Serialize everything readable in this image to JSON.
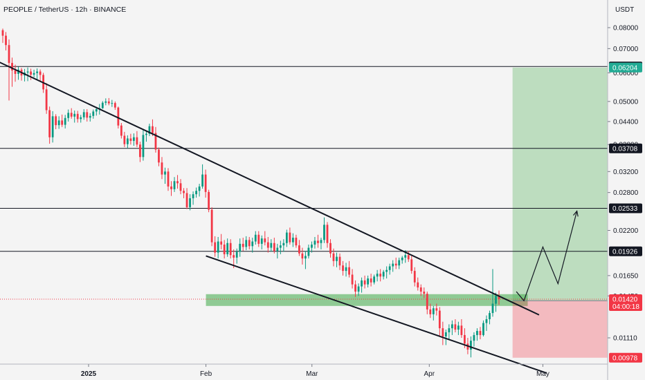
{
  "header": {
    "title": "PEOPLE / TetherUS · 12h · BINANCE",
    "currency": "USDT"
  },
  "chart_data": {
    "type": "candlestick",
    "scale": "log",
    "ylim": [
      0.0088,
      0.088
    ],
    "y_ticks": [
      "0.08000",
      "0.07000",
      "0.06000",
      "0.05000",
      "0.04400",
      "0.03800",
      "0.03200",
      "0.02800",
      "0.02200",
      "0.01650",
      "0.01450",
      "0.01110"
    ],
    "x_ticks": [
      {
        "label": "2025",
        "date": "2025-01-01",
        "bold": true
      },
      {
        "label": "Feb",
        "date": "2025-02-01",
        "bold": false
      },
      {
        "label": "Mar",
        "date": "2025-03-01",
        "bold": false
      },
      {
        "label": "Apr",
        "date": "2025-04-01",
        "bold": false
      },
      {
        "label": "May",
        "date": "2025-05-01",
        "bold": false
      }
    ],
    "price_levels": [
      {
        "label": "0.06248",
        "value": 0.06248,
        "style": "dark",
        "line": true
      },
      {
        "label": "0.06204",
        "value": 0.06204,
        "style": "green",
        "line": false
      },
      {
        "label": "0.03708",
        "value": 0.03708,
        "style": "dark",
        "line": true
      },
      {
        "label": "0.02533",
        "value": 0.02533,
        "style": "dark",
        "line": true
      },
      {
        "label": "0.01926",
        "value": 0.01926,
        "style": "dark",
        "line": true
      },
      {
        "label": "0.01406",
        "value": 0.01406,
        "style": "green",
        "line": false
      },
      {
        "label": "0.00978",
        "value": 0.00978,
        "style": "red",
        "line": false
      }
    ],
    "current_price": {
      "label": "0.01420",
      "value": 0.0142,
      "countdown": "04:00:18"
    },
    "trendlines": [
      {
        "name": "upper-trendline",
        "start": {
          "date": "2024-12-04",
          "price": 0.0675
        },
        "end": {
          "date": "2025-04-30",
          "price": 0.01285
        }
      },
      {
        "name": "lower-trendline",
        "start": {
          "date": "2025-02-01",
          "price": 0.0187
        },
        "end": {
          "date": "2025-05-02",
          "price": 0.00887
        }
      }
    ],
    "demand_zone": {
      "start": "2025-02-01",
      "end": "2025-04-27",
      "top": 0.01466,
      "bottom": 0.0136
    },
    "position": {
      "start": "2025-04-23",
      "end": "2025-05-18",
      "entry": 0.01406,
      "target": 0.06204,
      "stop": 0.00978
    },
    "projection": [
      {
        "date": "2025-04-24",
        "price": 0.0149
      },
      {
        "date": "2025-04-26",
        "price": 0.01406
      },
      {
        "date": "2025-05-01",
        "price": 0.0198
      },
      {
        "date": "2025-05-05",
        "price": 0.01567
      },
      {
        "date": "2025-05-10",
        "price": 0.02488
      }
    ],
    "candles_ohlc_encoding": "open, high, low, close per 12h bar",
    "candles": [
      [
        0.0787,
        0.0795,
        0.0726,
        0.076
      ],
      [
        0.076,
        0.0778,
        0.0692,
        0.0716
      ],
      [
        0.0716,
        0.0742,
        0.0503,
        0.0639
      ],
      [
        0.0639,
        0.0661,
        0.0549,
        0.0609
      ],
      [
        0.0609,
        0.0632,
        0.0567,
        0.0596
      ],
      [
        0.0596,
        0.0624,
        0.0574,
        0.0612
      ],
      [
        0.0612,
        0.0619,
        0.0571,
        0.059
      ],
      [
        0.059,
        0.0615,
        0.0568,
        0.0601
      ],
      [
        0.0601,
        0.0621,
        0.0569,
        0.0605
      ],
      [
        0.0605,
        0.0616,
        0.0573,
        0.0593
      ],
      [
        0.0593,
        0.0612,
        0.0583,
        0.0599
      ],
      [
        0.0599,
        0.0617,
        0.0574,
        0.0605
      ],
      [
        0.0605,
        0.0613,
        0.057,
        0.0592
      ],
      [
        0.0592,
        0.06,
        0.0528,
        0.054
      ],
      [
        0.054,
        0.0562,
        0.0462,
        0.0473
      ],
      [
        0.0473,
        0.0484,
        0.0382,
        0.0398
      ],
      [
        0.0398,
        0.047,
        0.0385,
        0.0455
      ],
      [
        0.0455,
        0.0461,
        0.0419,
        0.043
      ],
      [
        0.043,
        0.0455,
        0.042,
        0.0443
      ],
      [
        0.0443,
        0.046,
        0.0425,
        0.0431
      ],
      [
        0.0431,
        0.0459,
        0.0421,
        0.045
      ],
      [
        0.045,
        0.0475,
        0.044,
        0.0465
      ],
      [
        0.0465,
        0.0479,
        0.0448,
        0.0454
      ],
      [
        0.0454,
        0.0472,
        0.0437,
        0.0462
      ],
      [
        0.0462,
        0.0471,
        0.0437,
        0.0447
      ],
      [
        0.0447,
        0.0459,
        0.0437,
        0.0452
      ],
      [
        0.0452,
        0.0476,
        0.0445,
        0.0467
      ],
      [
        0.0467,
        0.0476,
        0.044,
        0.0451
      ],
      [
        0.0451,
        0.0464,
        0.044,
        0.0456
      ],
      [
        0.0456,
        0.0475,
        0.0448,
        0.0469
      ],
      [
        0.0469,
        0.0483,
        0.0457,
        0.0476
      ],
      [
        0.0476,
        0.0492,
        0.046,
        0.0479
      ],
      [
        0.0479,
        0.0501,
        0.0477,
        0.0496
      ],
      [
        0.0496,
        0.051,
        0.0488,
        0.05
      ],
      [
        0.05,
        0.0511,
        0.0488,
        0.0494
      ],
      [
        0.0494,
        0.0505,
        0.0483,
        0.0495
      ],
      [
        0.0495,
        0.05,
        0.0474,
        0.0481
      ],
      [
        0.0481,
        0.0484,
        0.0421,
        0.0429
      ],
      [
        0.0429,
        0.0436,
        0.0395,
        0.0402
      ],
      [
        0.0402,
        0.0412,
        0.0374,
        0.0381
      ],
      [
        0.0381,
        0.0403,
        0.0371,
        0.0395
      ],
      [
        0.0395,
        0.0407,
        0.038,
        0.0389
      ],
      [
        0.0389,
        0.0408,
        0.0377,
        0.0398
      ],
      [
        0.0398,
        0.0414,
        0.0374,
        0.038
      ],
      [
        0.038,
        0.0387,
        0.034,
        0.0351
      ],
      [
        0.0351,
        0.0419,
        0.0343,
        0.0404
      ],
      [
        0.0404,
        0.0416,
        0.0387,
        0.0407
      ],
      [
        0.0407,
        0.0434,
        0.0401,
        0.0427
      ],
      [
        0.0427,
        0.0446,
        0.0401,
        0.0409
      ],
      [
        0.0409,
        0.0425,
        0.0361,
        0.0368
      ],
      [
        0.0368,
        0.0373,
        0.0331,
        0.0339
      ],
      [
        0.0339,
        0.0351,
        0.0305,
        0.0314
      ],
      [
        0.0314,
        0.0328,
        0.0296,
        0.032
      ],
      [
        0.032,
        0.0327,
        0.0283,
        0.0291
      ],
      [
        0.0291,
        0.0301,
        0.0274,
        0.0286
      ],
      [
        0.0286,
        0.0309,
        0.0281,
        0.0301
      ],
      [
        0.0301,
        0.0313,
        0.0287,
        0.0297
      ],
      [
        0.0297,
        0.0305,
        0.0277,
        0.0283
      ],
      [
        0.0283,
        0.0288,
        0.027,
        0.0279
      ],
      [
        0.0279,
        0.0288,
        0.0252,
        0.0255
      ],
      [
        0.0255,
        0.0277,
        0.025,
        0.027
      ],
      [
        0.027,
        0.0282,
        0.0259,
        0.0277
      ],
      [
        0.0277,
        0.0289,
        0.0271,
        0.0283
      ],
      [
        0.0283,
        0.0296,
        0.0273,
        0.0291
      ],
      [
        0.0291,
        0.0335,
        0.0287,
        0.0314
      ],
      [
        0.0314,
        0.0324,
        0.0271,
        0.0281
      ],
      [
        0.0281,
        0.0285,
        0.0247,
        0.0251
      ],
      [
        0.0251,
        0.0255,
        0.0199,
        0.0204
      ],
      [
        0.0204,
        0.0212,
        0.0186,
        0.0191
      ],
      [
        0.0191,
        0.0211,
        0.0184,
        0.0205
      ],
      [
        0.0205,
        0.0215,
        0.0195,
        0.0201
      ],
      [
        0.0201,
        0.0207,
        0.0184,
        0.0189
      ],
      [
        0.0189,
        0.0209,
        0.0186,
        0.0203
      ],
      [
        0.0203,
        0.0208,
        0.0184,
        0.0188
      ],
      [
        0.0188,
        0.0195,
        0.0173,
        0.0185
      ],
      [
        0.0185,
        0.0196,
        0.0178,
        0.0192
      ],
      [
        0.0192,
        0.0209,
        0.0186,
        0.0202
      ],
      [
        0.0202,
        0.021,
        0.0193,
        0.0198
      ],
      [
        0.0198,
        0.0212,
        0.0194,
        0.0207
      ],
      [
        0.0207,
        0.0211,
        0.0195,
        0.0199
      ],
      [
        0.0199,
        0.021,
        0.0191,
        0.0205
      ],
      [
        0.0205,
        0.0219,
        0.0201,
        0.0214
      ],
      [
        0.0214,
        0.0219,
        0.0198,
        0.0202
      ],
      [
        0.0202,
        0.0213,
        0.0195,
        0.0209
      ],
      [
        0.0209,
        0.0219,
        0.02,
        0.0204
      ],
      [
        0.0204,
        0.0211,
        0.0191,
        0.0197
      ],
      [
        0.0197,
        0.0208,
        0.0192,
        0.0203
      ],
      [
        0.0203,
        0.021,
        0.019,
        0.0193
      ],
      [
        0.0193,
        0.0202,
        0.0184,
        0.0197
      ],
      [
        0.0197,
        0.0206,
        0.0189,
        0.02
      ],
      [
        0.02,
        0.0208,
        0.0192,
        0.0203
      ],
      [
        0.0203,
        0.0221,
        0.0198,
        0.0217
      ],
      [
        0.0217,
        0.0224,
        0.0201,
        0.0204
      ],
      [
        0.0204,
        0.0216,
        0.0198,
        0.021
      ],
      [
        0.021,
        0.0214,
        0.0197,
        0.02
      ],
      [
        0.02,
        0.0207,
        0.0187,
        0.019
      ],
      [
        0.019,
        0.0197,
        0.0177,
        0.0184
      ],
      [
        0.0184,
        0.0193,
        0.0172,
        0.0187
      ],
      [
        0.0187,
        0.0201,
        0.0184,
        0.0197
      ],
      [
        0.0197,
        0.0205,
        0.0191,
        0.0201
      ],
      [
        0.0201,
        0.0211,
        0.0196,
        0.0206
      ],
      [
        0.0206,
        0.0214,
        0.0197,
        0.0203
      ],
      [
        0.0203,
        0.021,
        0.0195,
        0.0207
      ],
      [
        0.0207,
        0.0239,
        0.0203,
        0.0228
      ],
      [
        0.0228,
        0.0232,
        0.0197,
        0.0203
      ],
      [
        0.0203,
        0.0208,
        0.0185,
        0.019
      ],
      [
        0.019,
        0.0196,
        0.0175,
        0.0181
      ],
      [
        0.0181,
        0.0191,
        0.0174,
        0.0186
      ],
      [
        0.0186,
        0.019,
        0.0171,
        0.0176
      ],
      [
        0.0176,
        0.0181,
        0.0165,
        0.017
      ],
      [
        0.017,
        0.0179,
        0.0164,
        0.0174
      ],
      [
        0.0174,
        0.0181,
        0.0163,
        0.0166
      ],
      [
        0.0166,
        0.0172,
        0.0152,
        0.0156
      ],
      [
        0.0156,
        0.016,
        0.0144,
        0.0149
      ],
      [
        0.0149,
        0.0157,
        0.0145,
        0.0154
      ],
      [
        0.0154,
        0.0163,
        0.0148,
        0.016
      ],
      [
        0.016,
        0.0165,
        0.0152,
        0.0156
      ],
      [
        0.0156,
        0.0165,
        0.0153,
        0.0162
      ],
      [
        0.0162,
        0.0167,
        0.0154,
        0.0158
      ],
      [
        0.0158,
        0.0166,
        0.0156,
        0.0164
      ],
      [
        0.0164,
        0.0171,
        0.0159,
        0.0167
      ],
      [
        0.0167,
        0.0172,
        0.0159,
        0.0164
      ],
      [
        0.0164,
        0.0171,
        0.0161,
        0.0169
      ],
      [
        0.0169,
        0.0175,
        0.0162,
        0.0171
      ],
      [
        0.0171,
        0.0178,
        0.0166,
        0.0175
      ],
      [
        0.0175,
        0.0182,
        0.0169,
        0.0178
      ],
      [
        0.0178,
        0.0185,
        0.0172,
        0.0176
      ],
      [
        0.0176,
        0.0185,
        0.0172,
        0.0182
      ],
      [
        0.0182,
        0.0187,
        0.0178,
        0.0185
      ],
      [
        0.0185,
        0.0194,
        0.0179,
        0.0188
      ],
      [
        0.0188,
        0.0193,
        0.018,
        0.0183
      ],
      [
        0.0183,
        0.0187,
        0.0167,
        0.017
      ],
      [
        0.017,
        0.0174,
        0.0154,
        0.0158
      ],
      [
        0.0158,
        0.0163,
        0.015,
        0.0153
      ],
      [
        0.0153,
        0.0156,
        0.0145,
        0.0149
      ],
      [
        0.0149,
        0.0153,
        0.0143,
        0.0147
      ],
      [
        0.0147,
        0.0149,
        0.0129,
        0.0133
      ],
      [
        0.0133,
        0.0138,
        0.0126,
        0.0129
      ],
      [
        0.0129,
        0.0136,
        0.0124,
        0.0134
      ],
      [
        0.0134,
        0.0138,
        0.0128,
        0.0132
      ],
      [
        0.0132,
        0.0135,
        0.0112,
        0.0118
      ],
      [
        0.0118,
        0.0123,
        0.0106,
        0.0112
      ],
      [
        0.0112,
        0.0117,
        0.0106,
        0.0115
      ],
      [
        0.0115,
        0.0121,
        0.011,
        0.0118
      ],
      [
        0.0118,
        0.0124,
        0.0113,
        0.0121
      ],
      [
        0.0121,
        0.0125,
        0.0115,
        0.0117
      ],
      [
        0.0117,
        0.0123,
        0.0113,
        0.012
      ],
      [
        0.012,
        0.0125,
        0.0111,
        0.0113
      ],
      [
        0.0113,
        0.0118,
        0.0104,
        0.0107
      ],
      [
        0.0107,
        0.0111,
        0.01,
        0.0103
      ],
      [
        0.0103,
        0.0112,
        0.0098,
        0.0109
      ],
      [
        0.0109,
        0.0115,
        0.0105,
        0.0113
      ],
      [
        0.0113,
        0.0118,
        0.0109,
        0.0116
      ],
      [
        0.0116,
        0.0119,
        0.011,
        0.0113
      ],
      [
        0.0113,
        0.0124,
        0.0112,
        0.0122
      ],
      [
        0.0122,
        0.0128,
        0.0116,
        0.0125
      ],
      [
        0.0125,
        0.0132,
        0.0121,
        0.013
      ],
      [
        0.013,
        0.0172,
        0.0127,
        0.0138
      ],
      [
        0.0138,
        0.0148,
        0.0131,
        0.0145
      ],
      [
        0.0145,
        0.015,
        0.0137,
        0.0142
      ]
    ]
  },
  "colors": {
    "background": "#f4f4f4",
    "up": "#089981",
    "down": "#f23645",
    "text": "#131722",
    "label_dark": "#131722",
    "label_green": "#22ab94",
    "label_red": "#f23645",
    "target_zone": "rgba(76,175,80,0.32)",
    "stop_zone": "rgba(242,54,69,0.30)",
    "demand_zone": "rgba(60,168,70,0.55)"
  }
}
